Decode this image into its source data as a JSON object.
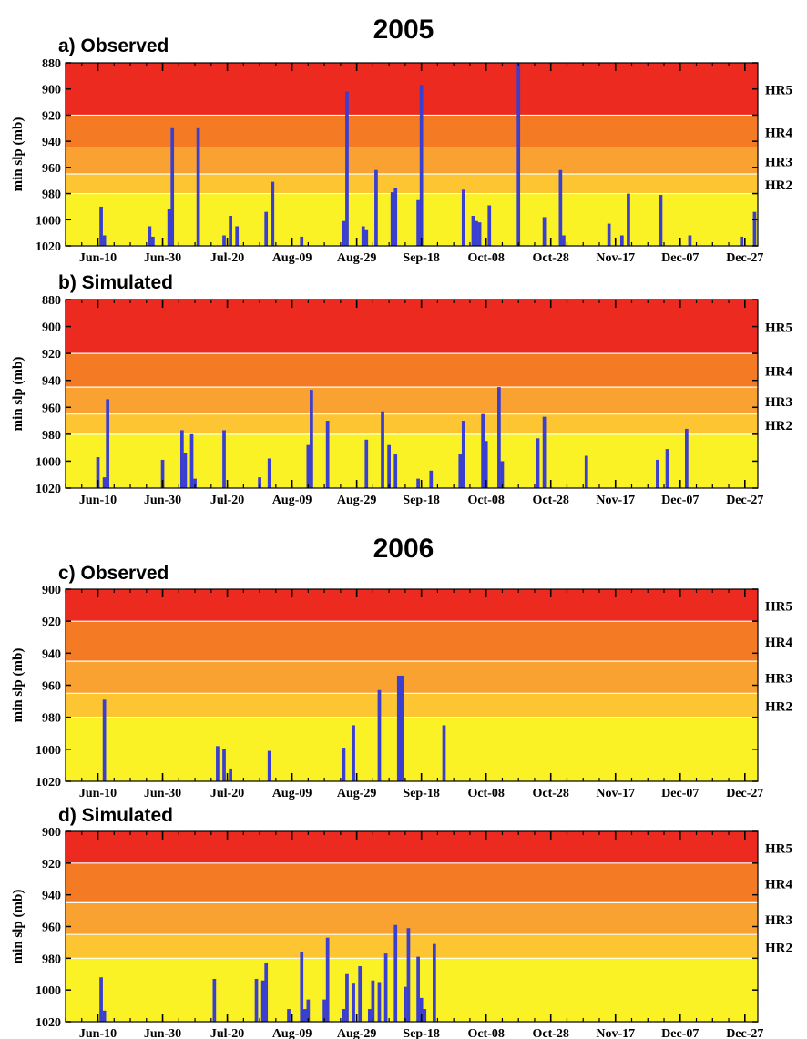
{
  "figure": {
    "year_titles": [
      "2005",
      "2006"
    ]
  },
  "chart_data": [
    {
      "panel": "a) Observed",
      "year": "2005",
      "type": "bar",
      "ylabel": "min slp (mb)",
      "ylim": [
        880,
        1020
      ],
      "y_inverted": true,
      "y_ticks": [
        "880",
        "900",
        "920",
        "940",
        "960",
        "980",
        "1000",
        "1020"
      ],
      "x_ticks": [
        "Jun-10",
        "Jun-30",
        "Jul-20",
        "Aug-09",
        "Aug-29",
        "Sep-18",
        "Oct-08",
        "Oct-28",
        "Nov-17",
        "Dec-07",
        "Dec-27"
      ],
      "x_range": [
        "May-31",
        "Dec-31"
      ],
      "category_bands": [
        {
          "label": "HR5",
          "from": 880,
          "to": 920,
          "color": "#ec2a1f"
        },
        {
          "label": "HR4",
          "from": 920,
          "to": 945,
          "color": "#f47b24"
        },
        {
          "label": "HR3",
          "from": 945,
          "to": 965,
          "color": "#f9a232"
        },
        {
          "label": "HR2",
          "from": 965,
          "to": 980,
          "color": "#fcc531"
        },
        {
          "label": "",
          "from": 980,
          "to": 1020,
          "color": "#fbf226"
        }
      ],
      "bar_color": "#3b3fd0",
      "bars": [
        {
          "date": "Jun-11",
          "value": 990
        },
        {
          "date": "Jun-12",
          "value": 1012
        },
        {
          "date": "Jun-26",
          "value": 1005
        },
        {
          "date": "Jun-27",
          "value": 1013
        },
        {
          "date": "Jul-02",
          "value": 992
        },
        {
          "date": "Jul-03",
          "value": 930
        },
        {
          "date": "Jul-11",
          "value": 930
        },
        {
          "date": "Jul-19",
          "value": 1012
        },
        {
          "date": "Jul-21",
          "value": 997
        },
        {
          "date": "Jul-23",
          "value": 1005
        },
        {
          "date": "Aug-01",
          "value": 994
        },
        {
          "date": "Aug-03",
          "value": 971
        },
        {
          "date": "Aug-12",
          "value": 1013
        },
        {
          "date": "Aug-25",
          "value": 1001
        },
        {
          "date": "Aug-26",
          "value": 902
        },
        {
          "date": "Aug-31",
          "value": 1005
        },
        {
          "date": "Sep-01",
          "value": 1008
        },
        {
          "date": "Sep-04",
          "value": 962
        },
        {
          "date": "Sep-09",
          "value": 979
        },
        {
          "date": "Sep-10",
          "value": 976
        },
        {
          "date": "Sep-17",
          "value": 985
        },
        {
          "date": "Sep-18",
          "value": 897
        },
        {
          "date": "Oct-01",
          "value": 977
        },
        {
          "date": "Oct-04",
          "value": 997
        },
        {
          "date": "Oct-05",
          "value": 1001
        },
        {
          "date": "Oct-06",
          "value": 1002
        },
        {
          "date": "Oct-09",
          "value": 989
        },
        {
          "date": "Oct-18",
          "value": 880
        },
        {
          "date": "Oct-26",
          "value": 998
        },
        {
          "date": "Oct-31",
          "value": 962
        },
        {
          "date": "Nov-01",
          "value": 1012
        },
        {
          "date": "Nov-15",
          "value": 1003
        },
        {
          "date": "Nov-19",
          "value": 1012
        },
        {
          "date": "Nov-21",
          "value": 980
        },
        {
          "date": "Dec-01",
          "value": 981
        },
        {
          "date": "Dec-10",
          "value": 1012
        },
        {
          "date": "Dec-26",
          "value": 1013
        },
        {
          "date": "Dec-30",
          "value": 994
        }
      ]
    },
    {
      "panel": "b) Simulated",
      "year": "2005",
      "type": "bar",
      "ylabel": "min slp (mb)",
      "ylim": [
        880,
        1020
      ],
      "y_inverted": true,
      "y_ticks": [
        "880",
        "900",
        "920",
        "940",
        "960",
        "980",
        "1000",
        "1020"
      ],
      "x_ticks": [
        "Jun-10",
        "Jun-30",
        "Jul-20",
        "Aug-09",
        "Aug-29",
        "Sep-18",
        "Oct-08",
        "Oct-28",
        "Nov-17",
        "Dec-07",
        "Dec-27"
      ],
      "x_range": [
        "May-31",
        "Dec-31"
      ],
      "category_bands": [
        {
          "label": "HR5",
          "from": 880,
          "to": 920,
          "color": "#ec2a1f"
        },
        {
          "label": "HR4",
          "from": 920,
          "to": 945,
          "color": "#f47b24"
        },
        {
          "label": "HR3",
          "from": 945,
          "to": 965,
          "color": "#f9a232"
        },
        {
          "label": "HR2",
          "from": 965,
          "to": 980,
          "color": "#fcc531"
        },
        {
          "label": "",
          "from": 980,
          "to": 1020,
          "color": "#fbf226"
        }
      ],
      "bar_color": "#3b3fd0",
      "bars": [
        {
          "date": "Jun-10",
          "value": 997
        },
        {
          "date": "Jun-12",
          "value": 1012
        },
        {
          "date": "Jun-13",
          "value": 954
        },
        {
          "date": "Jun-30",
          "value": 999
        },
        {
          "date": "Jul-06",
          "value": 977
        },
        {
          "date": "Jul-07",
          "value": 994
        },
        {
          "date": "Jul-09",
          "value": 980
        },
        {
          "date": "Jul-10",
          "value": 1013
        },
        {
          "date": "Jul-19",
          "value": 977
        },
        {
          "date": "Jul-30",
          "value": 1012
        },
        {
          "date": "Aug-02",
          "value": 998
        },
        {
          "date": "Aug-14",
          "value": 988
        },
        {
          "date": "Aug-15",
          "value": 947
        },
        {
          "date": "Aug-20",
          "value": 970
        },
        {
          "date": "Sep-01",
          "value": 984
        },
        {
          "date": "Sep-06",
          "value": 963
        },
        {
          "date": "Sep-08",
          "value": 988
        },
        {
          "date": "Sep-10",
          "value": 995
        },
        {
          "date": "Sep-17",
          "value": 1013
        },
        {
          "date": "Sep-21",
          "value": 1007
        },
        {
          "date": "Sep-30",
          "value": 995
        },
        {
          "date": "Oct-01",
          "value": 970
        },
        {
          "date": "Oct-07",
          "value": 965
        },
        {
          "date": "Oct-08",
          "value": 985
        },
        {
          "date": "Oct-12",
          "value": 945
        },
        {
          "date": "Oct-13",
          "value": 1000
        },
        {
          "date": "Oct-24",
          "value": 983
        },
        {
          "date": "Oct-26",
          "value": 967
        },
        {
          "date": "Nov-08",
          "value": 996
        },
        {
          "date": "Nov-30",
          "value": 999
        },
        {
          "date": "Dec-03",
          "value": 991
        },
        {
          "date": "Dec-09",
          "value": 976
        }
      ]
    },
    {
      "panel": "c) Observed",
      "year": "2006",
      "type": "bar",
      "ylabel": "min slp (mb)",
      "ylim": [
        900,
        1020
      ],
      "y_inverted": true,
      "y_ticks": [
        "900",
        "920",
        "940",
        "960",
        "980",
        "1000",
        "1020"
      ],
      "x_ticks": [
        "Jun-10",
        "Jun-30",
        "Jul-20",
        "Aug-09",
        "Aug-29",
        "Sep-18",
        "Oct-08",
        "Oct-28",
        "Nov-17",
        "Dec-07",
        "Dec-27"
      ],
      "x_range": [
        "May-31",
        "Dec-31"
      ],
      "category_bands": [
        {
          "label": "HR5",
          "from": 900,
          "to": 920,
          "color": "#ec2a1f"
        },
        {
          "label": "HR4",
          "from": 920,
          "to": 945,
          "color": "#f47b24"
        },
        {
          "label": "HR3",
          "from": 945,
          "to": 965,
          "color": "#f9a232"
        },
        {
          "label": "HR2",
          "from": 965,
          "to": 980,
          "color": "#fcc531"
        },
        {
          "label": "",
          "from": 980,
          "to": 1020,
          "color": "#fbf226"
        }
      ],
      "bar_color": "#3b3fd0",
      "bars": [
        {
          "date": "Jun-12",
          "value": 969
        },
        {
          "date": "Jul-17",
          "value": 998
        },
        {
          "date": "Jul-19",
          "value": 1000
        },
        {
          "date": "Jul-21",
          "value": 1012
        },
        {
          "date": "Aug-02",
          "value": 1001
        },
        {
          "date": "Aug-25",
          "value": 999
        },
        {
          "date": "Aug-28",
          "value": 985
        },
        {
          "date": "Sep-05",
          "value": 963
        },
        {
          "date": "Sep-11",
          "value": 954
        },
        {
          "date": "Sep-12",
          "value": 954
        },
        {
          "date": "Sep-25",
          "value": 985
        }
      ]
    },
    {
      "panel": "d) Simulated",
      "year": "2006",
      "type": "bar",
      "ylabel": "min slp (mb)",
      "ylim": [
        900,
        1020
      ],
      "y_inverted": true,
      "y_ticks": [
        "900",
        "920",
        "940",
        "960",
        "980",
        "1000",
        "1020"
      ],
      "x_ticks": [
        "Jun-10",
        "Jun-30",
        "Jul-20",
        "Aug-09",
        "Aug-29",
        "Sep-18",
        "Oct-08",
        "Oct-28",
        "Nov-17",
        "Dec-07",
        "Dec-27"
      ],
      "x_range": [
        "May-31",
        "Dec-31"
      ],
      "category_bands": [
        {
          "label": "HR5",
          "from": 900,
          "to": 920,
          "color": "#ec2a1f"
        },
        {
          "label": "HR4",
          "from": 920,
          "to": 945,
          "color": "#f47b24"
        },
        {
          "label": "HR3",
          "from": 945,
          "to": 965,
          "color": "#f9a232"
        },
        {
          "label": "HR2",
          "from": 965,
          "to": 980,
          "color": "#fcc531"
        },
        {
          "label": "",
          "from": 980,
          "to": 1020,
          "color": "#fbf226"
        }
      ],
      "bar_color": "#3b3fd0",
      "bars": [
        {
          "date": "Jun-11",
          "value": 992
        },
        {
          "date": "Jun-12",
          "value": 1013
        },
        {
          "date": "Jul-16",
          "value": 993
        },
        {
          "date": "Jul-29",
          "value": 993
        },
        {
          "date": "Jul-31",
          "value": 994
        },
        {
          "date": "Aug-01",
          "value": 983
        },
        {
          "date": "Aug-08",
          "value": 1012
        },
        {
          "date": "Aug-12",
          "value": 976
        },
        {
          "date": "Aug-13",
          "value": 1012
        },
        {
          "date": "Aug-14",
          "value": 1006
        },
        {
          "date": "Aug-19",
          "value": 1006
        },
        {
          "date": "Aug-20",
          "value": 967
        },
        {
          "date": "Aug-25",
          "value": 1012
        },
        {
          "date": "Aug-26",
          "value": 990
        },
        {
          "date": "Aug-28",
          "value": 996
        },
        {
          "date": "Aug-30",
          "value": 985
        },
        {
          "date": "Sep-02",
          "value": 1012
        },
        {
          "date": "Sep-03",
          "value": 994
        },
        {
          "date": "Sep-05",
          "value": 995
        },
        {
          "date": "Sep-07",
          "value": 977
        },
        {
          "date": "Sep-10",
          "value": 959
        },
        {
          "date": "Sep-13",
          "value": 998
        },
        {
          "date": "Sep-14",
          "value": 961
        },
        {
          "date": "Sep-17",
          "value": 979
        },
        {
          "date": "Sep-18",
          "value": 1005
        },
        {
          "date": "Sep-19",
          "value": 1012
        },
        {
          "date": "Sep-22",
          "value": 971
        }
      ]
    }
  ]
}
